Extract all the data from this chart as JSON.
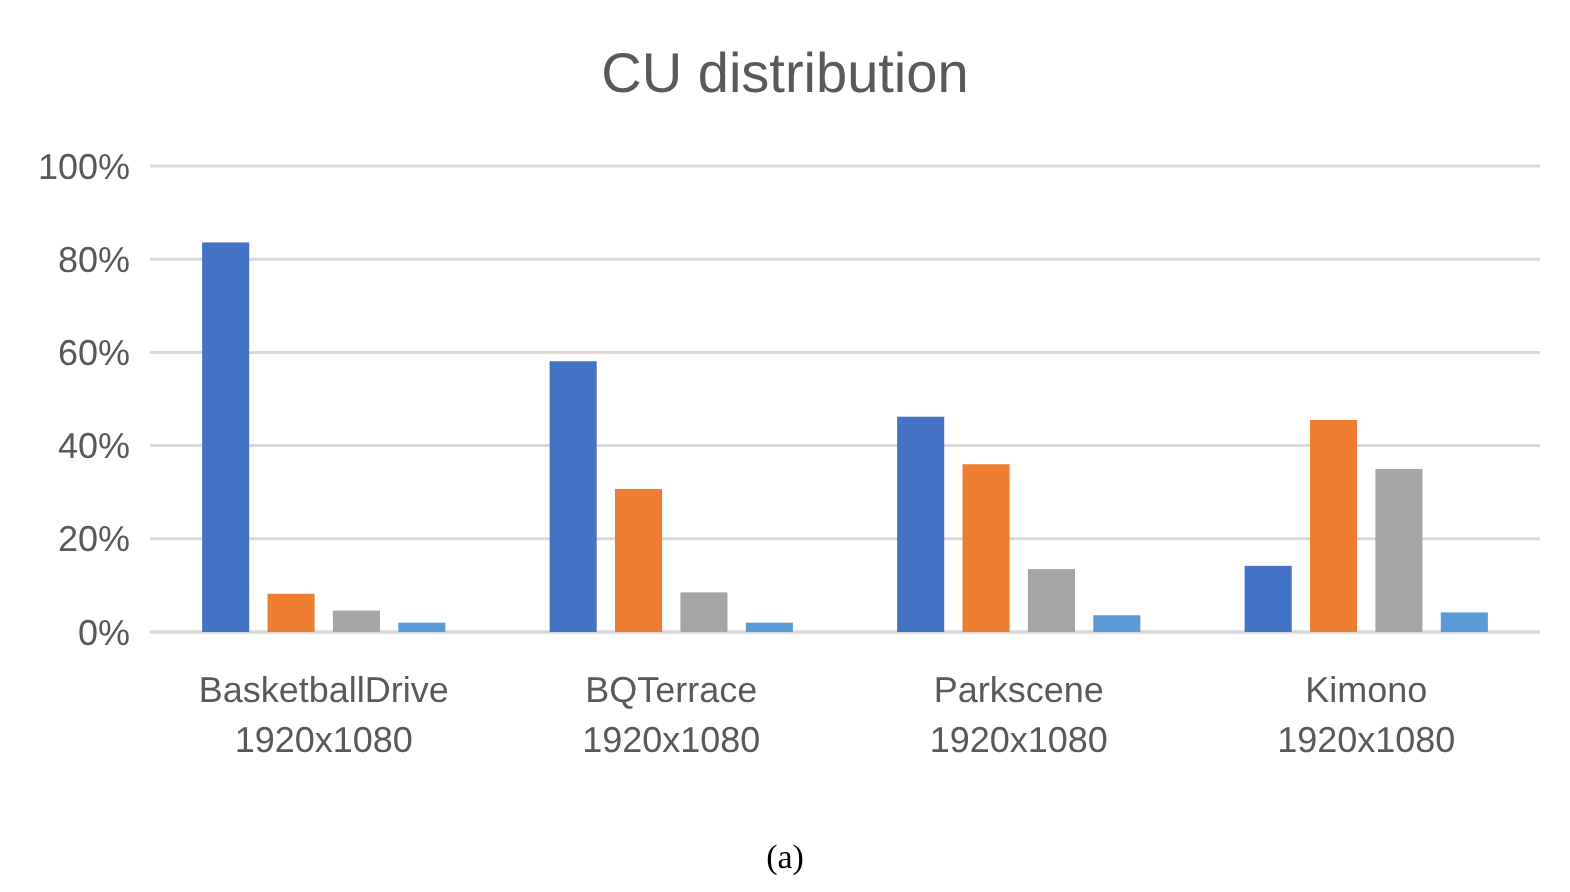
{
  "chart_data": {
    "type": "bar",
    "title": "CU distribution",
    "categories": [
      "BasketballDrive\n1920x1080",
      "BQTerrace\n1920x1080",
      "Parkscene\n1920x1080",
      "Kimono\n1920x1080"
    ],
    "series": [
      {
        "color": "#4472c4",
        "values": [
          0.836,
          0.581,
          0.462,
          0.142
        ]
      },
      {
        "color": "#ed7d31",
        "values": [
          0.082,
          0.307,
          0.36,
          0.455
        ]
      },
      {
        "color": "#a5a5a5",
        "values": [
          0.046,
          0.085,
          0.135,
          0.35
        ]
      },
      {
        "color": "#5b9bd5",
        "values": [
          0.02,
          0.02,
          0.036,
          0.042
        ]
      }
    ],
    "ylim": [
      0,
      1
    ],
    "yticks": [
      {
        "value": 0,
        "label": "0%"
      },
      {
        "value": 0.2,
        "label": "20%"
      },
      {
        "value": 0.4,
        "label": "40%"
      },
      {
        "value": 0.6,
        "label": "60%"
      },
      {
        "value": 0.8,
        "label": "80%"
      },
      {
        "value": 1,
        "label": "100%"
      }
    ],
    "grid": "y",
    "annotations": [
      "(a)"
    ]
  }
}
